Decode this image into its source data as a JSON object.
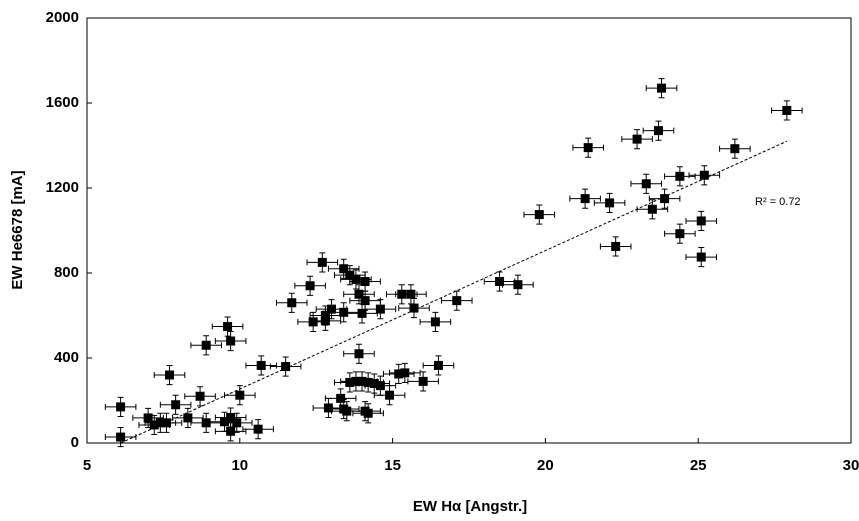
{
  "chart_data": {
    "type": "scatter",
    "xlabel": "EW Hα [Angstr.]",
    "ylabel": "EW He6678 [mA]",
    "annotation": "R² = 0.72",
    "x": [
      6.1,
      6.1,
      7.0,
      7.2,
      7.4,
      7.6,
      7.7,
      7.9,
      8.3,
      8.7,
      8.9,
      8.9,
      9.5,
      9.6,
      9.7,
      9.7,
      9.7,
      9.9,
      10.0,
      10.6,
      10.7,
      11.5,
      11.7,
      12.3,
      12.4,
      12.7,
      12.8,
      12.8,
      13.0,
      13.4,
      13.4,
      13.6,
      13.8,
      13.9,
      14.0,
      14.1,
      14.1,
      14.6,
      15.3,
      15.6,
      15.7,
      16.4,
      17.1,
      18.5,
      19.1,
      19.8,
      21.3,
      21.4,
      22.1,
      22.3,
      23.0,
      23.3,
      23.5,
      23.7,
      23.8,
      23.9,
      24.4,
      24.4,
      25.1,
      25.1,
      25.2,
      26.2,
      27.9,
      12.9,
      13.3,
      13.4,
      13.5,
      13.6,
      13.8,
      13.9,
      14.0,
      14.1,
      14.2,
      14.2,
      14.4,
      14.6,
      14.9,
      15.2,
      15.4,
      16.0,
      16.5
    ],
    "values": [
      170,
      28,
      118,
      85,
      95,
      95,
      320,
      180,
      118,
      220,
      95,
      460,
      100,
      548,
      120,
      480,
      55,
      95,
      225,
      65,
      365,
      360,
      660,
      740,
      570,
      850,
      600,
      575,
      630,
      615,
      820,
      790,
      770,
      700,
      610,
      760,
      670,
      630,
      700,
      700,
      635,
      570,
      670,
      760,
      745,
      1075,
      1150,
      1390,
      1130,
      925,
      1430,
      1220,
      1100,
      1470,
      1670,
      1150,
      985,
      1255,
      1045,
      875,
      1260,
      1385,
      1565,
      165,
      210,
      160,
      150,
      285,
      290,
      420,
      290,
      150,
      140,
      285,
      280,
      270,
      225,
      325,
      330,
      290,
      365
    ],
    "color": "#000000",
    "xerr": 0.5,
    "yerr": 45,
    "trendline": {
      "x": [
        6.1,
        27.9
      ],
      "y": [
        0,
        1420
      ]
    },
    "xlim": [
      5,
      30
    ],
    "xticks": [
      5,
      10,
      15,
      20,
      25,
      30
    ],
    "ylim": [
      0,
      2000
    ],
    "yticks": [
      0,
      400,
      800,
      1200,
      1600,
      2000
    ]
  }
}
